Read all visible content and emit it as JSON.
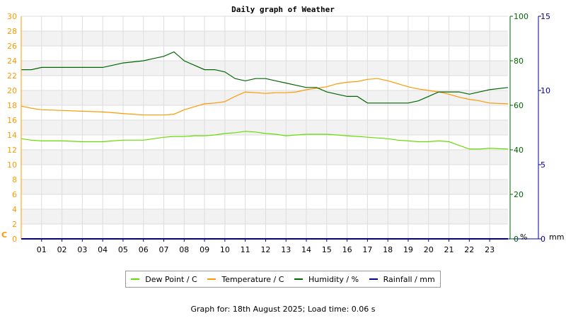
{
  "chart_data": {
    "type": "line",
    "title": "Daily graph of Weather",
    "x_tick_labels": [
      "01",
      "02",
      "03",
      "04",
      "05",
      "06",
      "07",
      "08",
      "09",
      "10",
      "11",
      "12",
      "13",
      "14",
      "15",
      "16",
      "17",
      "18",
      "19",
      "20",
      "21",
      "22",
      "23"
    ],
    "xlim": [
      0,
      23.9
    ],
    "axes": {
      "temperature": {
        "ylim": [
          0,
          30
        ],
        "ticks": [
          0,
          2,
          4,
          6,
          8,
          10,
          12,
          14,
          16,
          18,
          20,
          22,
          24,
          26,
          28,
          30
        ],
        "unit_label": "C",
        "color": "#ff9900"
      },
      "humidity": {
        "ylim": [
          0,
          100
        ],
        "ticks": [
          0,
          20,
          40,
          60,
          80,
          100
        ],
        "unit_label": "%",
        "color": "#006600"
      },
      "rainfall": {
        "ylim": [
          0,
          15
        ],
        "ticks": [
          0,
          5,
          10,
          15
        ],
        "unit_label": "mm",
        "color": "#000099"
      }
    },
    "series": [
      {
        "name": "Dew Point / C",
        "axis": "temperature",
        "color": "#66dd00",
        "x": [
          0,
          0.5,
          1,
          2,
          3,
          4,
          4.5,
          5,
          6,
          6.5,
          7,
          7.5,
          8,
          8.5,
          9,
          9.5,
          10,
          10.5,
          11,
          11.5,
          12,
          12.5,
          13,
          13.5,
          14,
          14.5,
          15,
          15.5,
          16,
          16.5,
          17,
          17.5,
          18,
          18.5,
          19,
          19.5,
          20,
          20.5,
          21,
          21.5,
          22,
          22.5,
          23,
          23.9
        ],
        "y": [
          13.5,
          13.3,
          13.2,
          13.2,
          13.1,
          13.1,
          13.2,
          13.3,
          13.3,
          13.5,
          13.7,
          13.8,
          13.8,
          13.9,
          13.9,
          14.0,
          14.2,
          14.3,
          14.5,
          14.4,
          14.2,
          14.1,
          13.9,
          14.0,
          14.1,
          14.1,
          14.1,
          14.0,
          13.9,
          13.8,
          13.7,
          13.6,
          13.5,
          13.3,
          13.2,
          13.1,
          13.1,
          13.2,
          13.1,
          12.6,
          12.1,
          12.1,
          12.2,
          12.1
        ]
      },
      {
        "name": "Temperature / C",
        "axis": "temperature",
        "color": "#ff9900",
        "x": [
          0,
          0.5,
          1,
          2,
          3,
          4,
          4.5,
          5,
          6,
          6.5,
          7,
          7.5,
          8,
          8.5,
          9,
          9.5,
          10,
          10.5,
          11,
          11.5,
          12,
          12.5,
          13,
          13.5,
          14,
          14.5,
          15,
          15.5,
          16,
          16.5,
          17,
          17.5,
          18,
          18.5,
          19,
          19.5,
          20,
          20.5,
          21,
          21.5,
          22,
          22.5,
          23,
          23.9
        ],
        "y": [
          17.9,
          17.6,
          17.4,
          17.3,
          17.2,
          17.1,
          17.0,
          16.9,
          16.7,
          16.7,
          16.7,
          16.8,
          17.4,
          17.8,
          18.2,
          18.3,
          18.5,
          19.2,
          19.8,
          19.7,
          19.6,
          19.7,
          19.7,
          19.8,
          20.1,
          20.3,
          20.5,
          20.9,
          21.1,
          21.2,
          21.5,
          21.6,
          21.3,
          20.9,
          20.5,
          20.2,
          20.0,
          19.8,
          19.5,
          19.1,
          18.8,
          18.6,
          18.3,
          18.2
        ]
      },
      {
        "name": "Humidity / %",
        "axis": "humidity",
        "color": "#006600",
        "x": [
          0,
          0.5,
          1,
          2,
          3,
          4,
          4.5,
          5,
          6,
          6.5,
          7,
          7.5,
          8,
          8.5,
          9,
          9.5,
          10,
          10.5,
          11,
          11.5,
          12,
          12.5,
          13,
          13.5,
          14,
          14.5,
          15,
          15.5,
          16,
          16.5,
          17,
          17.5,
          18,
          18.5,
          19,
          19.5,
          20,
          20.5,
          21,
          21.5,
          22,
          22.5,
          23,
          23.9
        ],
        "y": [
          76,
          76,
          77,
          77,
          77,
          77,
          78,
          79,
          80,
          81,
          82,
          84,
          80,
          78,
          76,
          76,
          75,
          72,
          71,
          72,
          72,
          71,
          70,
          69,
          68,
          68,
          66,
          65,
          64,
          64,
          61,
          61,
          61,
          61,
          61,
          62,
          64,
          66,
          66,
          66,
          65,
          66,
          67,
          68
        ]
      },
      {
        "name": "Rainfall / mm",
        "axis": "rainfall",
        "color": "#000099",
        "x": [
          0,
          23.9
        ],
        "y": [
          0,
          0
        ]
      }
    ],
    "legend_position": "bottom",
    "grid": true
  },
  "footer": "Graph for: 18th August 2025; Load time: 0.06 s"
}
